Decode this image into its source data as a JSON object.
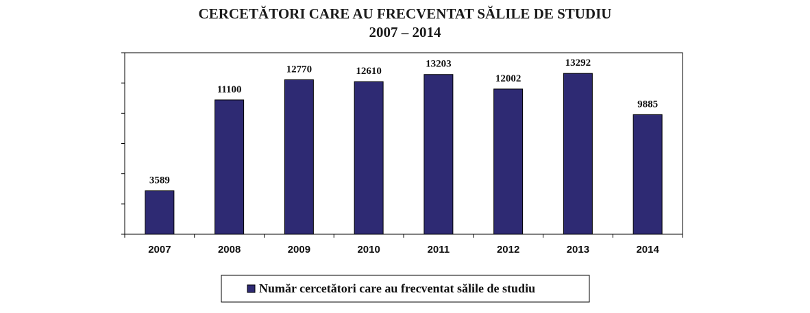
{
  "chart_data": {
    "type": "bar",
    "title": "CERCETĂTORI CARE AU FRECVENTAT SĂLILE DE STUDIU",
    "subtitle": "2007 – 2014",
    "categories": [
      "2007",
      "2008",
      "2009",
      "2010",
      "2011",
      "2012",
      "2013",
      "2014"
    ],
    "series": [
      {
        "name": "Număr cercetători care au frecventat sălile de studiu",
        "values": [
          3589,
          11100,
          12770,
          12610,
          13203,
          12002,
          13292,
          9885
        ]
      }
    ],
    "ylim": [
      0,
      15000
    ],
    "y_tick_step": 2500,
    "grid": false,
    "legend_position": "bottom",
    "bar_color": "#2e2a73",
    "bar_outline_color": "#000000",
    "xlabel": "",
    "ylabel": ""
  }
}
